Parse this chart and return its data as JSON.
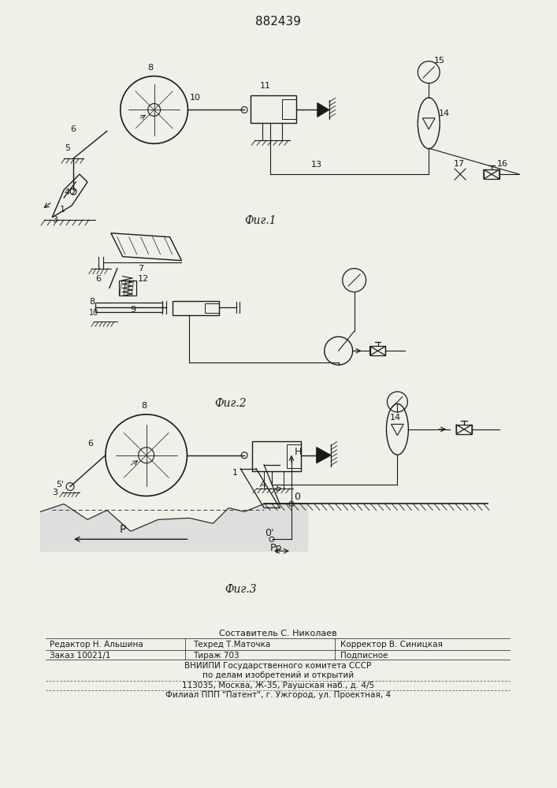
{
  "title": "882439",
  "fig1_label": "Фиг.1",
  "fig2_label": "Фиг.2",
  "fig3_label": "Фиг.3",
  "bg_color": "#f0efe8",
  "line_color": "#1a1a1a",
  "fig_width": 7.07,
  "fig_height": 10.0,
  "dpi": 100,
  "footer": {
    "line1": "Составитель С. Николаев",
    "editor": "Редактор Н. Альшина",
    "tekhred": "Техред Т.Маточка",
    "corrector": "Корректор В. Синицкая",
    "order": "Заказ 10021/1",
    "tirazh": "Тираж 703",
    "podpisnoe": "Подписное",
    "vniipи": "ВНИИПИ Государственного комитета СССР",
    "po_delam": "по делам изобретений и открытий",
    "address": "113035, Москва, Ж-35, Раушская наб., д. 4/5",
    "filial": "Филиал ППП \"Патент\", г. Ужгород, ул. Проектная, 4"
  }
}
